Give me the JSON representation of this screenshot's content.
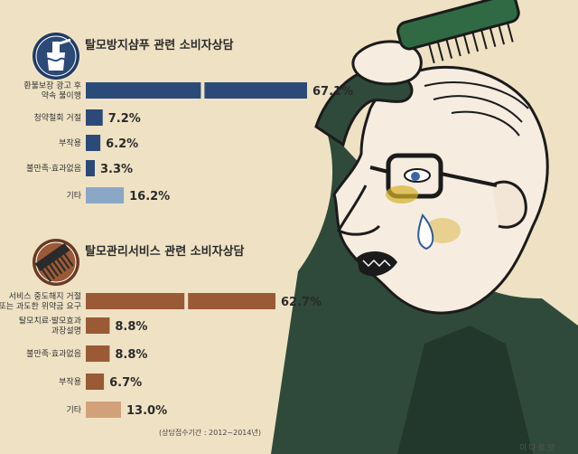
{
  "chart_data": [
    {
      "type": "bar",
      "orientation": "horizontal",
      "title": "탈모방지샴푸 관련 소비자상담",
      "categories": [
        "환불보장 광고 후\n약속 불이행",
        "청약철회 거절",
        "부작용",
        "불만족·효과없음",
        "기타"
      ],
      "values": [
        67.1,
        7.2,
        6.2,
        3.3,
        16.2
      ],
      "value_labels": [
        "67.1%",
        "7.2%",
        "6.2%",
        "3.3%",
        "16.2%"
      ],
      "broken_axis_first_bar": true,
      "colors": [
        "#2c4a78",
        "#2c4a78",
        "#2c4a78",
        "#2c4a78",
        "#8ba7c6"
      ]
    },
    {
      "type": "bar",
      "orientation": "horizontal",
      "title": "탈모관리서비스 관련 소비자상담",
      "categories": [
        "서비스 중도해지 거절\n또는 과도한 위약금 요구",
        "탈모치료·발모효과\n과장설명",
        "불만족·효과없음",
        "부작용",
        "기타"
      ],
      "values": [
        62.7,
        8.8,
        8.8,
        6.7,
        13.0
      ],
      "value_labels": [
        "62.7%",
        "8.8%",
        "8.8%",
        "6.7%",
        "13.0%"
      ],
      "broken_axis_first_bar": true,
      "colors": [
        "#9a5a36",
        "#9a5a36",
        "#9a5a36",
        "#9a5a36",
        "#d2a07a"
      ]
    }
  ],
  "footnote": "(상담접수기간 : 2012~2014년)",
  "signature": "이다로앗",
  "icons": {
    "top": "shampoo-bottle-icon",
    "bottom": "comb-icon"
  },
  "illustration": "comb-man-illustration"
}
